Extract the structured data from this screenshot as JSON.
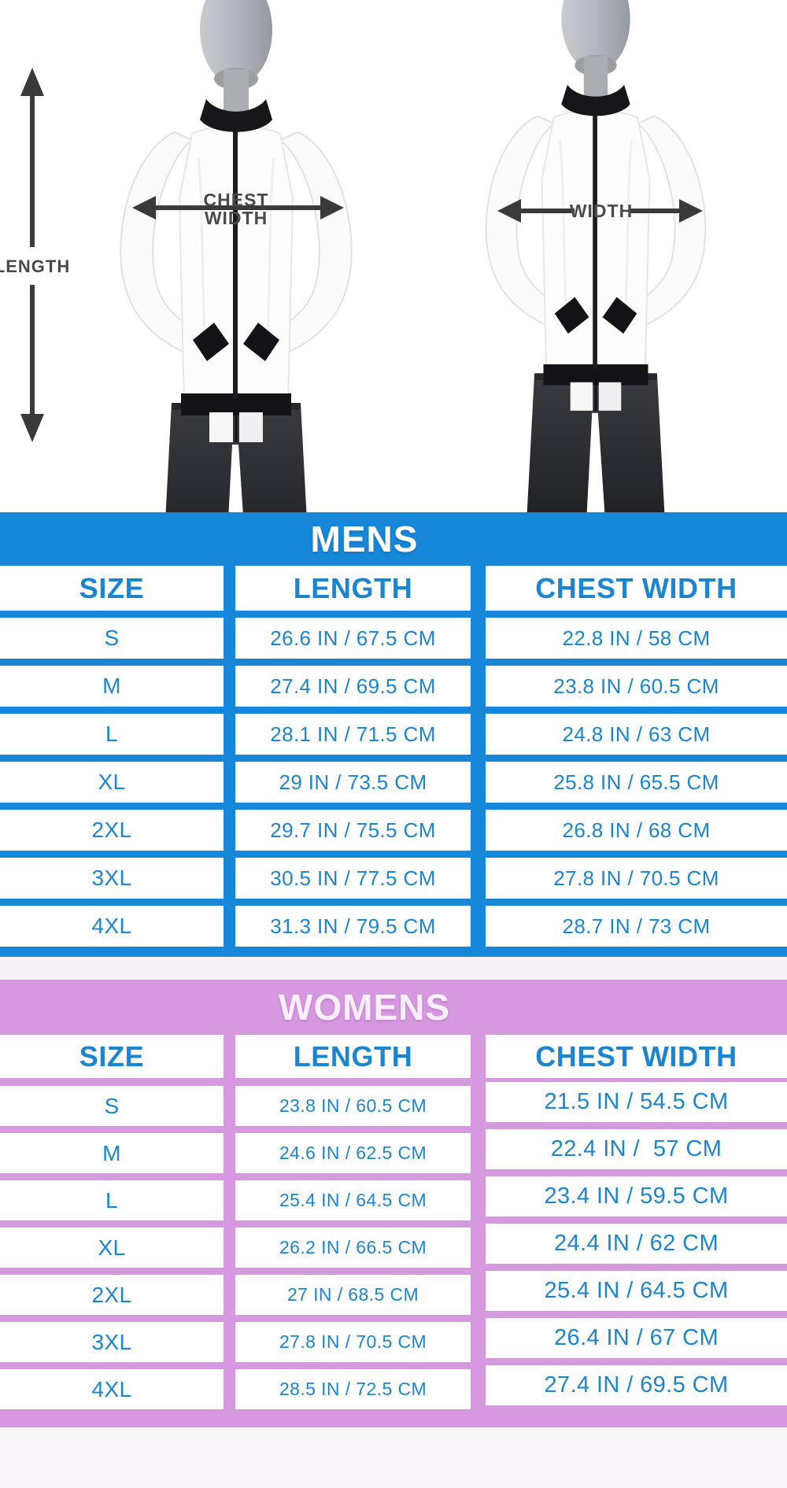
{
  "diagram": {
    "length_label": "LENGTH",
    "chest_width_label_line1": "CHEST",
    "chest_width_label_line2": "WIDTH",
    "width_label": "WIDTH"
  },
  "mens": {
    "title": "MENS",
    "columns": [
      "SIZE",
      "LENGTH",
      "CHEST WIDTH"
    ],
    "rows": [
      {
        "size": "S",
        "length": "26.6 IN / 67.5 CM",
        "chest": "22.8 IN / 58 CM"
      },
      {
        "size": "M",
        "length": "27.4 IN / 69.5 CM",
        "chest": "23.8 IN / 60.5 CM"
      },
      {
        "size": "L",
        "length": "28.1 IN / 71.5 CM",
        "chest": "24.8 IN / 63 CM"
      },
      {
        "size": "XL",
        "length": "29 IN / 73.5 CM",
        "chest": "25.8 IN / 65.5 CM"
      },
      {
        "size": "2XL",
        "length": "29.7 IN / 75.5 CM",
        "chest": "26.8 IN / 68 CM"
      },
      {
        "size": "3XL",
        "length": "30.5 IN / 77.5 CM",
        "chest": "27.8 IN / 70.5 CM"
      },
      {
        "size": "4XL",
        "length": "31.3 IN / 79.5 CM",
        "chest": "28.7 IN / 73 CM"
      }
    ]
  },
  "womens": {
    "title": "WOMENS",
    "columns": [
      "SIZE",
      "LENGTH",
      "CHEST WIDTH"
    ],
    "rows": [
      {
        "size": "S",
        "length": "23.8 IN / 60.5 CM",
        "chest": "21.5 IN / 54.5 CM"
      },
      {
        "size": "M",
        "length": "24.6 IN / 62.5 CM",
        "chest": "22.4 IN /  57 CM"
      },
      {
        "size": "L",
        "length": "25.4 IN / 64.5 CM",
        "chest": "23.4 IN / 59.5 CM"
      },
      {
        "size": "XL",
        "length": "26.2 IN / 66.5 CM",
        "chest": "24.4 IN / 62 CM"
      },
      {
        "size": "2XL",
        "length": "27 IN / 68.5 CM",
        "chest": "25.4 IN / 64.5 CM"
      },
      {
        "size": "3XL",
        "length": "27.8 IN / 70.5 CM",
        "chest": "26.4 IN / 67 CM"
      },
      {
        "size": "4XL",
        "length": "28.5 IN / 72.5 CM",
        "chest": "27.4 IN / 69.5 CM"
      }
    ]
  },
  "colors": {
    "mens_accent": "#1787d9",
    "table_text": "#1b85d0",
    "womens_accent": "#d699e0",
    "womens_title_text": "#fdeeff",
    "label_gray": "#48484a",
    "arrow_dark": "#3a3a3c"
  }
}
